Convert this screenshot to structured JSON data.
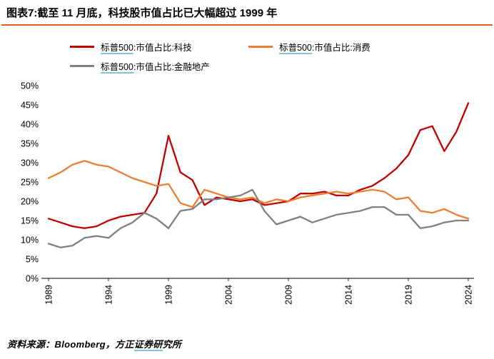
{
  "header": {
    "title": "图表7:截至 11 月底，科技股市值占比已大幅超过 1999 年"
  },
  "footer": {
    "source": "资料来源：Bloomberg，方正证券研究所"
  },
  "colors": {
    "divider": "#E05C1F",
    "axis": "#333333",
    "tech_red": "#C00000",
    "consumer_orange": "#ED7D31",
    "financial_gray": "#808080"
  },
  "underline_hints": [
    "标普500",
    "证券研"
  ],
  "chart_data": {
    "type": "line",
    "title": "图表7:截至 11 月底，科技股市值占比已大幅超过 1999 年",
    "xlabel": "",
    "ylabel": "",
    "ylim": [
      0,
      50
    ],
    "y_tick_step": 5,
    "y_tick_format": "percent",
    "grid": false,
    "legend_position": "top",
    "x": [
      1989,
      1990,
      1991,
      1992,
      1993,
      1994,
      1995,
      1996,
      1997,
      1998,
      1999,
      2000,
      2001,
      2002,
      2003,
      2004,
      2005,
      2006,
      2007,
      2008,
      2009,
      2010,
      2011,
      2012,
      2013,
      2014,
      2015,
      2016,
      2017,
      2018,
      2019,
      2020,
      2021,
      2022,
      2023,
      2024
    ],
    "x_tick_labels": [
      "1989",
      "1994",
      "1999",
      "2004",
      "2009",
      "2014",
      "2019",
      "2024"
    ],
    "series": [
      {
        "name": "标普500:市值占比:科技",
        "color": "#C00000",
        "values": [
          15.5,
          14.5,
          13.5,
          13.0,
          13.5,
          15.0,
          16.0,
          16.5,
          17.0,
          22.0,
          37.0,
          27.5,
          25.5,
          19.0,
          21.0,
          20.5,
          20.0,
          20.5,
          19.0,
          19.5,
          20.0,
          22.0,
          22.0,
          22.5,
          21.5,
          21.5,
          23.0,
          24.0,
          26.0,
          28.5,
          32.0,
          38.5,
          39.5,
          33.0,
          38.0,
          45.5
        ]
      },
      {
        "name": "标普500:市值占比:消费",
        "color": "#ED7D31",
        "values": [
          26.0,
          27.5,
          29.5,
          30.5,
          29.5,
          29.0,
          27.5,
          26.0,
          25.0,
          24.0,
          24.5,
          19.5,
          18.5,
          23.0,
          22.0,
          21.0,
          20.5,
          21.0,
          19.5,
          20.5,
          20.0,
          21.0,
          21.5,
          22.0,
          22.5,
          22.0,
          22.5,
          23.0,
          22.5,
          20.5,
          21.0,
          17.5,
          17.0,
          18.0,
          16.5,
          15.5
        ]
      },
      {
        "name": "标普500:市值占比:金融地产",
        "color": "#808080",
        "values": [
          9.0,
          8.0,
          8.5,
          10.5,
          11.0,
          10.5,
          13.0,
          14.5,
          17.0,
          15.5,
          13.0,
          17.5,
          18.0,
          20.5,
          20.5,
          21.0,
          21.5,
          23.0,
          17.5,
          14.0,
          15.0,
          16.0,
          14.5,
          15.5,
          16.5,
          17.0,
          17.5,
          18.5,
          18.5,
          16.5,
          16.5,
          13.0,
          13.5,
          14.5,
          15.0,
          15.0
        ]
      }
    ]
  }
}
